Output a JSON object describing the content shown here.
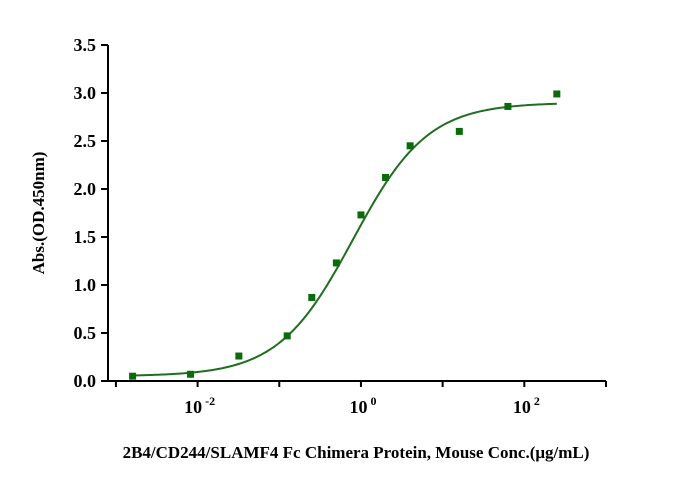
{
  "chart_data": {
    "type": "scatter",
    "title": "",
    "xlabel": "2B4/CD244/SLAMF4 Fc Chimera Protein, Mouse Conc.(μg/mL)",
    "ylabel": "Abs.(OD.450nm)",
    "x_scale": "log",
    "xlim": [
      0.0008,
      1000
    ],
    "ylim": [
      0,
      3.5
    ],
    "y_ticks": [
      "0.0",
      "0.5",
      "1.0",
      "1.5",
      "2.0",
      "2.5",
      "3.0",
      "3.5"
    ],
    "x_ticks": [
      {
        "base": "10",
        "exp": "-2",
        "value": 0.01
      },
      {
        "base": "10",
        "exp": "0",
        "value": 1
      },
      {
        "base": "10",
        "exp": "2",
        "value": 100
      }
    ],
    "grid": false,
    "legend": false,
    "colors": {
      "marker": "#0a6b0a",
      "curve": "#1f6e1f",
      "axis": "#000000"
    },
    "series": [
      {
        "x": [
          0.0016,
          0.0082,
          0.032,
          0.125,
          0.25,
          0.5,
          1.0,
          2.0,
          4.0,
          16.0,
          63,
          250
        ],
        "y": [
          0.05,
          0.07,
          0.26,
          0.47,
          0.87,
          1.23,
          1.73,
          2.12,
          2.45,
          2.6,
          2.86,
          2.99
        ],
        "fit": {
          "model": "4PL",
          "bottom": 0.05,
          "top": 2.9,
          "ec50": 0.8,
          "hill": 0.95
        }
      }
    ]
  }
}
